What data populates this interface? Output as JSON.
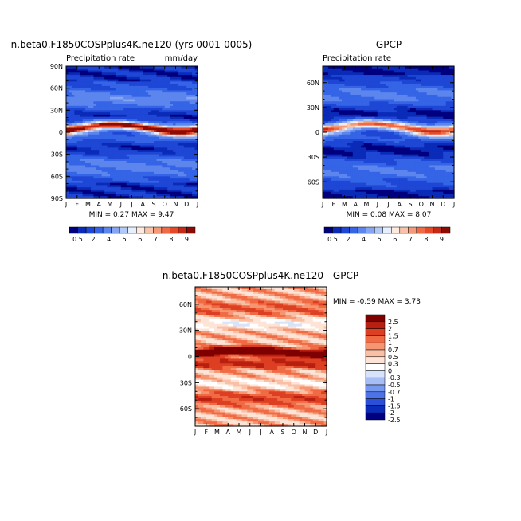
{
  "colors": {
    "model": [
      "#00007f",
      "#0a2bb8",
      "#1f47d6",
      "#3565e6",
      "#5c86ee",
      "#86a6f3",
      "#b3c9f7",
      "#e6efff",
      "#fde9dd",
      "#f8c3a9",
      "#f59a78",
      "#f06b45",
      "#e44a2a",
      "#c42a17",
      "#8e0b04"
    ],
    "diff": [
      "#000080",
      "#0a2bb8",
      "#2a50d9",
      "#4c74e8",
      "#7698ef",
      "#a6bdf5",
      "#d6e3fa",
      "#ffffff",
      "#fde4d6",
      "#f9c0a5",
      "#f59572",
      "#f06a44",
      "#dd3f22",
      "#b81f10",
      "#7f0000"
    ]
  },
  "chart_data": [
    {
      "id": "model",
      "type": "heatmap",
      "title": "n.beta0.F1850COSPplus4K.ne120 (yrs 0001-0005)",
      "subtitle_left": "Precipitation rate",
      "subtitle_right": "mm/day",
      "x_ticks": [
        "J",
        "F",
        "M",
        "A",
        "M",
        "J",
        "J",
        "A",
        "S",
        "O",
        "N",
        "D",
        "J"
      ],
      "y_ticks": [
        {
          "lat": 90,
          "label": "90N"
        },
        {
          "lat": 60,
          "label": "60N"
        },
        {
          "lat": 30,
          "label": "30N"
        },
        {
          "lat": 0,
          "label": "0"
        },
        {
          "lat": -30,
          "label": "30S"
        },
        {
          "lat": -60,
          "label": "60S"
        },
        {
          "lat": -90,
          "label": "90S"
        }
      ],
      "ylim": [
        -90,
        90
      ],
      "xlim": [
        0,
        12
      ],
      "min_text": "MIN =  0.27 MAX =  9.47",
      "levels": [
        "0.5",
        "2",
        "4",
        "5",
        "6",
        "7",
        "8",
        "9"
      ],
      "itcz_amp": 1.0,
      "offset": 0.4
    },
    {
      "id": "obs",
      "type": "heatmap",
      "title": "GPCP",
      "subtitle_left": "Precipitation rate",
      "subtitle_right": "",
      "x_ticks": [
        "J",
        "F",
        "M",
        "A",
        "M",
        "J",
        "J",
        "A",
        "S",
        "O",
        "N",
        "D",
        "J"
      ],
      "y_ticks": [
        {
          "lat": 60,
          "label": "60N"
        },
        {
          "lat": 30,
          "label": "30N"
        },
        {
          "lat": 0,
          "label": "0"
        },
        {
          "lat": -30,
          "label": "30S"
        },
        {
          "lat": -60,
          "label": "60S"
        }
      ],
      "ylim": [
        -80,
        80
      ],
      "xlim": [
        0,
        12
      ],
      "min_text": "MIN =  0.08 MAX =  8.07",
      "levels": [
        "0.5",
        "2",
        "4",
        "5",
        "6",
        "7",
        "8",
        "9"
      ],
      "itcz_amp": 0.85,
      "offset": 0.0
    },
    {
      "id": "diff",
      "type": "heatmap",
      "title": "n.beta0.F1850COSPplus4K.ne120 - GPCP",
      "x_ticks": [
        "J",
        "F",
        "M",
        "A",
        "M",
        "J",
        "J",
        "A",
        "S",
        "O",
        "N",
        "D",
        "J"
      ],
      "y_ticks": [
        {
          "lat": 60,
          "label": "60N"
        },
        {
          "lat": 30,
          "label": "30N"
        },
        {
          "lat": 0,
          "label": "0"
        },
        {
          "lat": -30,
          "label": "30S"
        },
        {
          "lat": -60,
          "label": "60S"
        }
      ],
      "ylim": [
        -80,
        80
      ],
      "xlim": [
        0,
        12
      ],
      "min_text": "MIN =  -0.59 MAX =  3.73",
      "levels": [
        "2.5",
        "2",
        "1.5",
        "1",
        "0.7",
        "0.5",
        "0.3",
        "0",
        "-0.3",
        "-0.5",
        "-0.7",
        "-1",
        "-1.5",
        "-2",
        "-2.5"
      ]
    }
  ]
}
